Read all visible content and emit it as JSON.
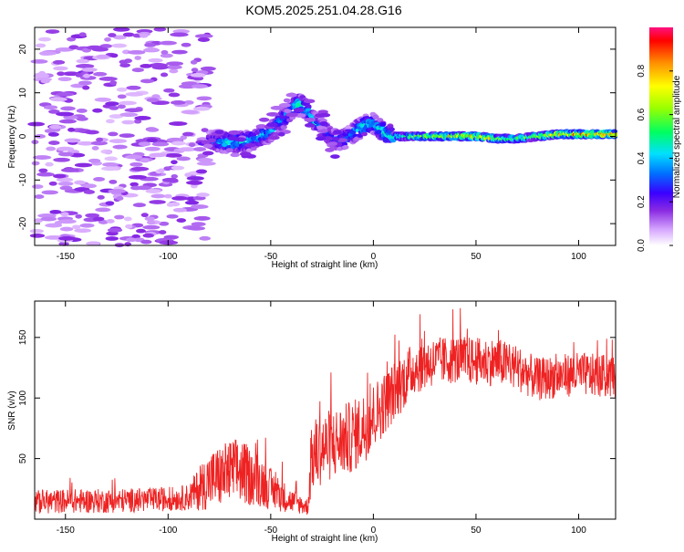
{
  "title": "KOM5.2025.251.04.28.G16",
  "chart_data": [
    {
      "type": "heatmap",
      "name": "spectrogram",
      "xlabel": "Height of straight line (km)",
      "ylabel": "Frequency (Hz)",
      "xlim": [
        -165,
        118
      ],
      "ylim": [
        -25,
        25
      ],
      "xticks": [
        -150,
        -100,
        -50,
        0,
        50,
        100
      ],
      "yticks": [
        -20,
        -10,
        0,
        10,
        20
      ],
      "colorbar": {
        "label": "Normalized spectral amplitude",
        "range": [
          0,
          1
        ],
        "ticks": [
          "0.0",
          "0.2",
          "0.4",
          "0.6",
          "0.8"
        ],
        "tick_values": [
          0,
          0.2,
          0.4,
          0.6,
          0.8
        ],
        "stops": [
          {
            "v": 0.0,
            "c": "#ffffff"
          },
          {
            "v": 0.07,
            "c": "#d8aaff"
          },
          {
            "v": 0.16,
            "c": "#8a2be2"
          },
          {
            "v": 0.24,
            "c": "#3a00ff"
          },
          {
            "v": 0.33,
            "c": "#0070ff"
          },
          {
            "v": 0.42,
            "c": "#00e0ff"
          },
          {
            "v": 0.52,
            "c": "#00ff60"
          },
          {
            "v": 0.63,
            "c": "#9aff00"
          },
          {
            "v": 0.73,
            "c": "#ffff00"
          },
          {
            "v": 0.84,
            "c": "#ff8c00"
          },
          {
            "v": 0.94,
            "c": "#ff0000"
          },
          {
            "v": 1.0,
            "c": "#ff1080"
          }
        ]
      },
      "ridge": {
        "x": [
          -80,
          -70,
          -60,
          -50,
          -45,
          -40,
          -36,
          -32,
          -28,
          -24,
          -20,
          -16,
          -12,
          -8,
          -4,
          0,
          5,
          10,
          20,
          30,
          40,
          50,
          60,
          70,
          80,
          90,
          100,
          110,
          118
        ],
        "freq": [
          -1,
          -1.5,
          -1,
          1,
          3.5,
          6,
          7.5,
          6,
          3,
          1.5,
          -0.5,
          -1,
          0,
          1.5,
          2.5,
          3,
          1,
          0,
          0,
          0,
          0,
          0,
          -0.5,
          -0.5,
          0,
          0.5,
          0.5,
          0.5,
          0.5
        ],
        "amp": [
          0.25,
          0.45,
          0.4,
          0.35,
          0.35,
          0.4,
          0.5,
          0.35,
          0.4,
          0.35,
          0.3,
          0.35,
          0.35,
          0.4,
          0.45,
          0.4,
          0.45,
          0.5,
          0.6,
          0.65,
          0.75,
          0.8,
          0.7,
          0.6,
          0.65,
          0.85,
          0.9,
          0.9,
          0.9
        ]
      }
    },
    {
      "type": "line",
      "name": "snr",
      "xlabel": "Height of straight line (km)",
      "ylabel": "SNR (v/v)",
      "xlim": [
        -165,
        118
      ],
      "ylim": [
        0,
        180
      ],
      "xticks": [
        -150,
        -100,
        -50,
        0,
        50,
        100
      ],
      "yticks": [
        50,
        100,
        150
      ],
      "color": "#ee2222",
      "series": [
        {
          "name": "SNR",
          "x": [
            -165,
            -150,
            -130,
            -110,
            -95,
            -90,
            -85,
            -80,
            -75,
            -70,
            -65,
            -60,
            -55,
            -50,
            -45,
            -40,
            -35,
            -32,
            -30,
            -28,
            -25,
            -20,
            -15,
            -10,
            -5,
            0,
            5,
            10,
            15,
            20,
            25,
            30,
            40,
            50,
            60,
            70,
            80,
            90,
            100,
            110,
            118
          ],
          "y": [
            14,
            15,
            15,
            16,
            17,
            18,
            25,
            32,
            35,
            38,
            40,
            35,
            32,
            25,
            20,
            15,
            12,
            10,
            50,
            55,
            58,
            62,
            65,
            68,
            75,
            85,
            95,
            105,
            115,
            125,
            128,
            130,
            132,
            130,
            130,
            125,
            115,
            118,
            120,
            118,
            118
          ],
          "noise": [
            10,
            10,
            10,
            10,
            10,
            11,
            18,
            24,
            26,
            28,
            28,
            24,
            22,
            17,
            14,
            10,
            8,
            7,
            30,
            30,
            30,
            30,
            30,
            30,
            30,
            28,
            26,
            25,
            24,
            22,
            22,
            20,
            20,
            20,
            20,
            19,
            18,
            18,
            18,
            18,
            18
          ]
        }
      ]
    }
  ]
}
